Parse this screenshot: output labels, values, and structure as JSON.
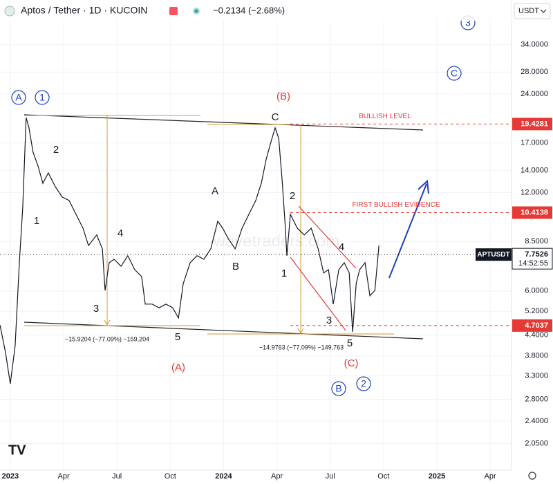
{
  "chart_data": {
    "type": "line",
    "title": "Aptos / Tether · 1D · KUCOIN",
    "change": "−0.2134 (−2.68%)",
    "currency": "USDT",
    "symbol": "APTUSDT",
    "countdown": "14:52:55",
    "watermark": "wavetraders.com",
    "log_scale": true,
    "ylim": [
      1.7,
      46.5
    ],
    "yticks": [
      {
        "value": 34,
        "label": "34.0000"
      },
      {
        "value": 28,
        "label": "28.0000"
      },
      {
        "value": 24,
        "label": "24.0000"
      },
      {
        "value": 17,
        "label": "17.0000"
      },
      {
        "value": 14,
        "label": "14.0000"
      },
      {
        "value": 12,
        "label": "12.0000"
      },
      {
        "value": 8.5,
        "label": "8.5000"
      },
      {
        "value": 6,
        "label": "6.0000"
      },
      {
        "value": 5.2,
        "label": "5.2000"
      },
      {
        "value": 4.4,
        "label": "4.4000"
      },
      {
        "value": 3.8,
        "label": "3.8000"
      },
      {
        "value": 3.3,
        "label": "3.3000"
      },
      {
        "value": 2.8,
        "label": "2.8000"
      },
      {
        "value": 2.4,
        "label": "2.4000"
      },
      {
        "value": 2.05,
        "label": "2.0500"
      }
    ],
    "xlim": [
      -0.58,
      28.2
    ],
    "xticks": [
      {
        "value": 0,
        "label": "2023"
      },
      {
        "value": 3,
        "label": "Apr"
      },
      {
        "value": 6,
        "label": "Jul"
      },
      {
        "value": 9,
        "label": "Oct"
      },
      {
        "value": 12,
        "label": "2024"
      },
      {
        "value": 15,
        "label": "Apr"
      },
      {
        "value": 18,
        "label": "Jul"
      },
      {
        "value": 21,
        "label": "Oct"
      },
      {
        "value": 24,
        "label": "2025"
      },
      {
        "value": 27,
        "label": "Apr"
      }
    ],
    "series": [
      {
        "name": "APTUSDT",
        "color": "#131722",
        "x": [
          -0.58,
          -0.27,
          0,
          0.27,
          0.51,
          0.7,
          0.89,
          1.05,
          1.28,
          1.56,
          1.83,
          2.14,
          2.53,
          2.92,
          3.31,
          3.7,
          4.09,
          4.4,
          4.86,
          5.18,
          5.33,
          5.56,
          5.84,
          6.23,
          6.61,
          7.0,
          7.39,
          7.59,
          7.98,
          8.37,
          8.75,
          9.14,
          9.46,
          9.73,
          10.12,
          10.51,
          10.89,
          11.28,
          11.67,
          11.95,
          12.26,
          12.65,
          13.04,
          13.42,
          13.81,
          14.12,
          14.4,
          14.67,
          14.9,
          15.1,
          15.29,
          15.45,
          15.56,
          15.76,
          16.15,
          16.54,
          16.93,
          17.32,
          17.63,
          17.9,
          18.17,
          18.48,
          18.79,
          19.07,
          19.26,
          19.46,
          19.65,
          19.96,
          20.23,
          20.51,
          20.74
        ],
        "values": [
          4.72,
          3.89,
          3.12,
          4.08,
          7.32,
          10.8,
          20.33,
          18.91,
          15.94,
          14.46,
          12.8,
          13.77,
          12.5,
          11.62,
          11.34,
          10.29,
          9.33,
          8.26,
          8.9,
          8.07,
          6.02,
          7.32,
          7.5,
          7.14,
          7.69,
          6.97,
          6.64,
          5.47,
          5.47,
          5.33,
          5.47,
          5.33,
          4.96,
          6.32,
          7.32,
          7.69,
          7.5,
          8.07,
          9.8,
          9.33,
          8.68,
          8.07,
          9.33,
          10.29,
          11.34,
          12.8,
          15.19,
          17.15,
          18.91,
          17.57,
          13.12,
          9.8,
          7.69,
          10.29,
          9.33,
          8.9,
          9.33,
          8.07,
          6.81,
          6.97,
          5.47,
          6.97,
          7.32,
          6.81,
          4.5,
          6.32,
          6.97,
          7.32,
          5.8,
          6.02,
          8.26
        ]
      }
    ],
    "last_price": 7.7526,
    "levels": [
      {
        "label": "BULLISH LEVEL",
        "value": 19.4281
      },
      {
        "label": "FIRST BULLISH EVIDENCE",
        "value": 10.4138
      },
      {
        "value": 4.7037
      }
    ],
    "measurements": [
      "−15.9204 (−77.09%) −159,204",
      "−14.9763 (−77.09%) −149,763"
    ],
    "wave_labels": [
      "A",
      "1",
      "3",
      "C",
      "2",
      "1",
      "4",
      "3",
      "5",
      "(A)",
      "(B)",
      "C",
      "A",
      "B",
      "1",
      "2",
      "4",
      "3",
      "5",
      "(C)",
      "B",
      "2"
    ]
  }
}
